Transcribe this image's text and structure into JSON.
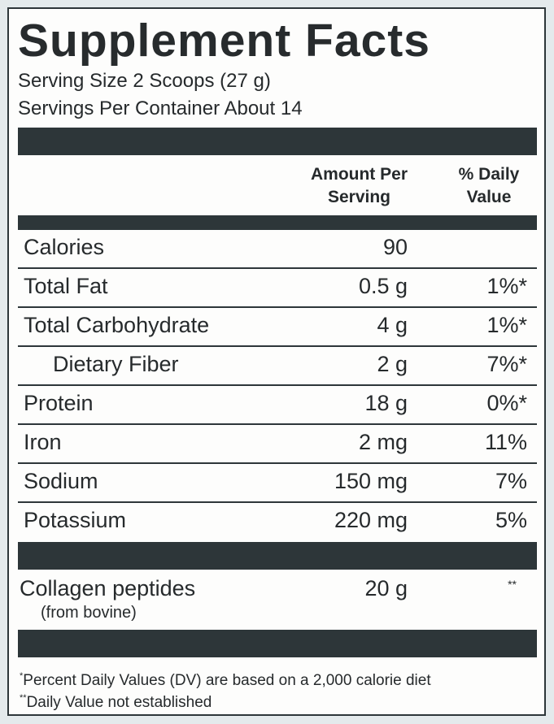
{
  "title": "Supplement Facts",
  "serving_size": "Serving Size 2 Scoops (27 g)",
  "servings_per_container": "Servings Per Container About 14",
  "header": {
    "amount_line1": "Amount Per",
    "amount_line2": "Serving",
    "dv_line1": "% Daily",
    "dv_line2": "Value"
  },
  "nutrients": [
    {
      "name": "Calories",
      "amount": "90",
      "dv": ""
    },
    {
      "name": "Total Fat",
      "amount": "0.5 g",
      "dv": "1%*"
    },
    {
      "name": "Total Carbohydrate",
      "amount": "4 g",
      "dv": "1%*"
    },
    {
      "name": "Dietary Fiber",
      "amount": "2 g",
      "dv": "7%*"
    },
    {
      "name": "Protein",
      "amount": "18 g",
      "dv": "0%*"
    },
    {
      "name": "Iron",
      "amount": "2 mg",
      "dv": "11%"
    },
    {
      "name": "Sodium",
      "amount": "150 mg",
      "dv": "7%"
    },
    {
      "name": "Potassium",
      "amount": "220 mg",
      "dv": "5%"
    }
  ],
  "other": {
    "name": "Collagen peptides",
    "source": "(from bovine)",
    "amount": "20 g",
    "dv": "**"
  },
  "footnotes": {
    "mark1": "*",
    "note1": "Percent Daily Values (DV) are based on a 2,000 calorie diet",
    "mark2": "**",
    "note2": "Daily Value not established"
  },
  "colors": {
    "bar": "#2d3639",
    "background": "#e4eaec",
    "label": "#fdfdfc"
  }
}
